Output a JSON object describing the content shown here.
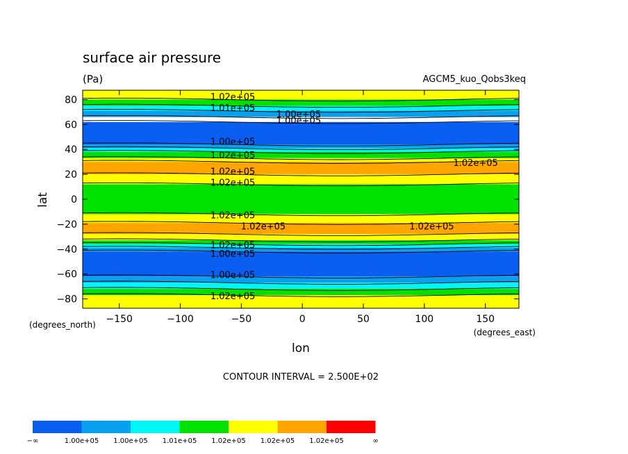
{
  "chart_data": {
    "type": "heatmap",
    "title": "surface air pressure",
    "units": "(Pa)",
    "experiment": "AGCM5_kuo_Qobs3keq",
    "xlabel": "lon",
    "ylabel": "lat",
    "x_unit_label": "(degrees_east)",
    "y_unit_label": "(degrees_north)",
    "xlim": [
      -180,
      177.5
    ],
    "ylim": [
      -87.5,
      87.5
    ],
    "x_ticks": [
      -150,
      -100,
      -50,
      0,
      50,
      100,
      150
    ],
    "y_ticks": [
      -80,
      -60,
      -40,
      -20,
      0,
      20,
      40,
      60,
      80
    ],
    "contour_interval_text": "CONTOUR INTERVAL = 2.500E+02",
    "colorbar": {
      "colors": [
        "#0a5ff0",
        "#0aa0f0",
        "#00f5f5",
        "#00e100",
        "#ffff00",
        "#ffa500",
        "#ff0000"
      ],
      "labels": [
        "−∞",
        "1.00e+05",
        "1.00e+05",
        "1.01e+05",
        "1.02e+05",
        "1.02e+05",
        "1.02e+05",
        "∞"
      ]
    },
    "latitude_bands": [
      {
        "lat_from": 80,
        "lat_to": 87.5,
        "level": 4
      },
      {
        "lat_from": 75,
        "lat_to": 80,
        "level": 3
      },
      {
        "lat_from": 71,
        "lat_to": 75,
        "level": 2
      },
      {
        "lat_from": 66,
        "lat_to": 71,
        "level": 1
      },
      {
        "lat_from": 44,
        "lat_to": 62,
        "level": 0
      },
      {
        "lat_from": 41,
        "lat_to": 44,
        "level": 1
      },
      {
        "lat_from": 38,
        "lat_to": 41,
        "level": 2
      },
      {
        "lat_from": 33,
        "lat_to": 38,
        "level": 3
      },
      {
        "lat_from": 30,
        "lat_to": 33,
        "level": 4
      },
      {
        "lat_from": 20,
        "lat_to": 30,
        "level": 5
      },
      {
        "lat_from": 12,
        "lat_to": 20,
        "level": 4
      },
      {
        "lat_from": -12,
        "lat_to": 12,
        "level": 3
      },
      {
        "lat_from": -19,
        "lat_to": -12,
        "level": 4
      },
      {
        "lat_from": -28,
        "lat_to": -19,
        "level": 5
      },
      {
        "lat_from": -33,
        "lat_to": -28,
        "level": 4
      },
      {
        "lat_from": -36,
        "lat_to": -33,
        "level": 3
      },
      {
        "lat_from": -39,
        "lat_to": -36,
        "level": 2
      },
      {
        "lat_from": -42,
        "lat_to": -39,
        "level": 1
      },
      {
        "lat_from": -62,
        "lat_to": -42,
        "level": 0
      },
      {
        "lat_from": -67,
        "lat_to": -62,
        "level": 1
      },
      {
        "lat_from": -72,
        "lat_to": -67,
        "level": 2
      },
      {
        "lat_from": -77,
        "lat_to": -72,
        "level": 3
      },
      {
        "lat_from": -87.5,
        "lat_to": -77,
        "level": 4
      }
    ],
    "contour_labels": [
      {
        "text": "1.02e+05",
        "lon": -57,
        "lat": 82
      },
      {
        "text": "1.01e+05",
        "lon": -57,
        "lat": 73
      },
      {
        "text": "1.00e+05",
        "lon": -3,
        "lat": 68
      },
      {
        "text": "1.00e+05",
        "lon": -3,
        "lat": 63
      },
      {
        "text": "1.00e+05",
        "lon": -57,
        "lat": 46
      },
      {
        "text": "1.02e+05",
        "lon": -57,
        "lat": 35
      },
      {
        "text": "1.02e+05",
        "lon": 142,
        "lat": 29
      },
      {
        "text": "1.02e+05",
        "lon": -57,
        "lat": 22
      },
      {
        "text": "1.02e+05",
        "lon": -57,
        "lat": 13
      },
      {
        "text": "1.02e+05",
        "lon": -57,
        "lat": -13
      },
      {
        "text": "1.02e+05",
        "lon": -32,
        "lat": -22
      },
      {
        "text": "1.02e+05",
        "lon": 106,
        "lat": -22
      },
      {
        "text": "1.02e+05",
        "lon": -57,
        "lat": -37
      },
      {
        "text": "1.00e+05",
        "lon": -57,
        "lat": -44
      },
      {
        "text": "1.00e+05",
        "lon": -57,
        "lat": -61
      },
      {
        "text": "1.02e+05",
        "lon": -57,
        "lat": -78
      }
    ]
  }
}
